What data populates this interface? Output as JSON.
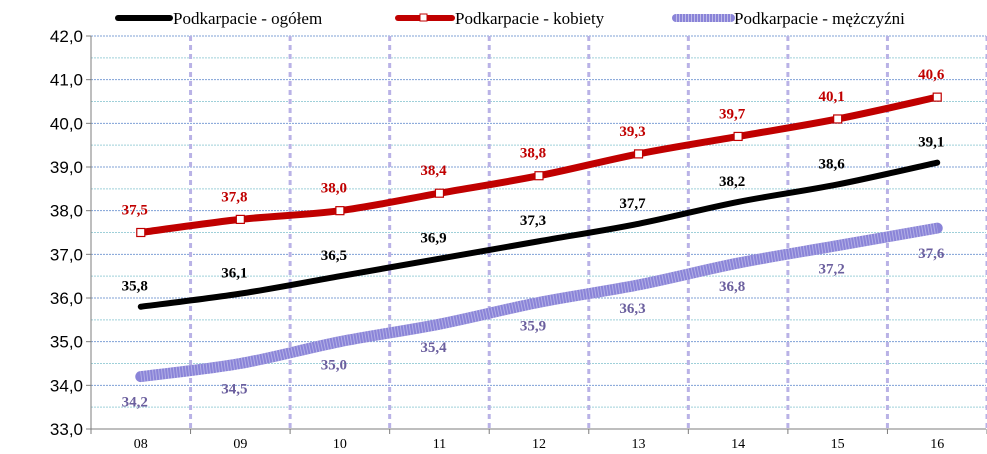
{
  "chart_data": {
    "type": "line",
    "title": "",
    "xlabel": "",
    "ylabel": "",
    "categories": [
      "08",
      "09",
      "10",
      "11",
      "12",
      "13",
      "14",
      "15",
      "16"
    ],
    "ylim": [
      33.0,
      42.0
    ],
    "yticks": [
      "33,0",
      "34,0",
      "35,0",
      "36,0",
      "37,0",
      "38,0",
      "39,0",
      "40,0",
      "41,0",
      "42,0"
    ],
    "grid": true,
    "legend_position": "top",
    "series": [
      {
        "name": "Podkarpacie - ogółem",
        "color": "#000000",
        "values": [
          35.8,
          36.1,
          36.5,
          36.9,
          37.3,
          37.7,
          38.2,
          38.6,
          39.1
        ],
        "labels": [
          "35,8",
          "36,1",
          "36,5",
          "36,9",
          "37,3",
          "37,7",
          "38,2",
          "38,6",
          "39,1"
        ]
      },
      {
        "name": "Podkarpacie - kobiety",
        "color": "#c00000",
        "values": [
          37.5,
          37.8,
          38.0,
          38.4,
          38.8,
          39.3,
          39.7,
          40.1,
          40.6
        ],
        "labels": [
          "37,5",
          "37,8",
          "38,0",
          "38,4",
          "38,8",
          "39,3",
          "39,7",
          "40,1",
          "40,6"
        ]
      },
      {
        "name": "Podkarpacie - mężczyźni",
        "color": "#8a84d8",
        "label_color": "#6b5f9e",
        "values": [
          34.2,
          34.5,
          35.0,
          35.4,
          35.9,
          36.3,
          36.8,
          37.2,
          37.6
        ],
        "labels": [
          "34,2",
          "34,5",
          "35,0",
          "35,4",
          "35,9",
          "36,3",
          "36,8",
          "37,2",
          "37,6"
        ]
      }
    ]
  }
}
